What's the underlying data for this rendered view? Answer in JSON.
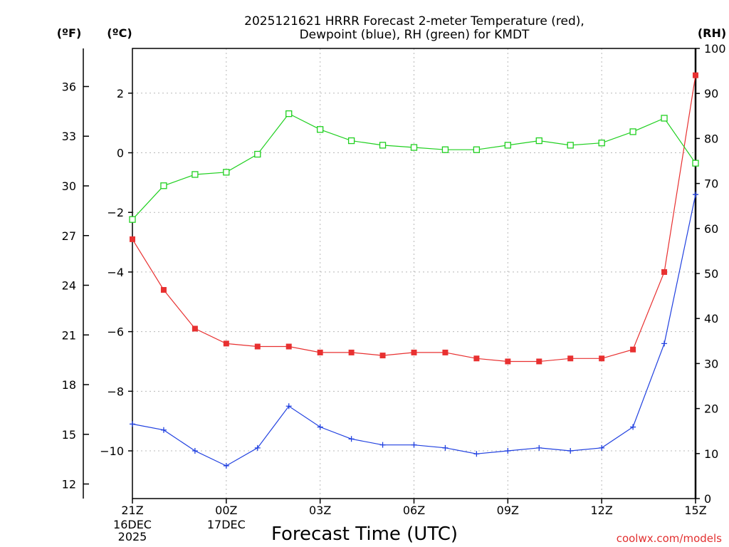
{
  "chart_data": {
    "type": "line",
    "title": [
      "2025121621 HRRR Forecast 2-meter Temperature (red),",
      "Dewpoint (blue), RH (green) for KMDT"
    ],
    "xlabel": "Forecast Time (UTC)",
    "credit": "coolwx.com/models",
    "units": {
      "fahrenheit": "(ºF)",
      "celsius": "(ºC)",
      "rh": "(RH)"
    },
    "x_ticks": [
      {
        "hour": 0,
        "label": "21Z",
        "sub": [
          "16DEC",
          "2025"
        ]
      },
      {
        "hour": 3,
        "label": "00Z",
        "sub": [
          "17DEC"
        ]
      },
      {
        "hour": 6,
        "label": "03Z",
        "sub": []
      },
      {
        "hour": 9,
        "label": "06Z",
        "sub": []
      },
      {
        "hour": 12,
        "label": "09Z",
        "sub": []
      },
      {
        "hour": 15,
        "label": "12Z",
        "sub": []
      },
      {
        "hour": 18,
        "label": "15Z",
        "sub": []
      }
    ],
    "x_range": [
      0,
      18
    ],
    "celsius_axis": {
      "range": [
        -11.6,
        3.5
      ],
      "ticks": [
        2,
        0,
        -2,
        -4,
        -6,
        -8,
        -10
      ]
    },
    "fahrenheit_axis": {
      "range": [
        11.12,
        38.3
      ],
      "ticks": [
        36,
        33,
        30,
        27,
        24,
        21,
        18,
        15,
        12
      ]
    },
    "rh_axis": {
      "range": [
        0,
        100
      ],
      "ticks": [
        100,
        90,
        80,
        70,
        60,
        50,
        40,
        30,
        20,
        10,
        0
      ]
    },
    "series": [
      {
        "name": "Temperature",
        "color": "#e83030",
        "marker": "filled-square",
        "axis": "celsius",
        "values": [
          -2.9,
          -4.6,
          -5.9,
          -6.4,
          -6.5,
          -6.5,
          -6.7,
          -6.7,
          -6.8,
          -6.7,
          -6.7,
          -6.9,
          -7.0,
          -7.0,
          -6.9,
          -6.9,
          -6.6,
          -4.0,
          2.6
        ]
      },
      {
        "name": "Dewpoint",
        "color": "#2040e0",
        "marker": "plus",
        "axis": "celsius",
        "values": [
          -9.1,
          -9.3,
          -10.0,
          -10.5,
          -9.9,
          -8.5,
          -9.2,
          -9.6,
          -9.8,
          -9.8,
          -9.9,
          -10.1,
          -10.0,
          -9.9,
          -10.0,
          -9.9,
          -9.2,
          -6.4,
          -1.4
        ]
      },
      {
        "name": "RH",
        "color": "#20d020",
        "marker": "open-square",
        "axis": "rh",
        "values": [
          62,
          69.5,
          72,
          72.5,
          76.5,
          85.5,
          82,
          79.5,
          78.5,
          78,
          77.5,
          77.5,
          78.5,
          79.5,
          78.5,
          79,
          81.5,
          84.5,
          74.5
        ]
      }
    ]
  }
}
